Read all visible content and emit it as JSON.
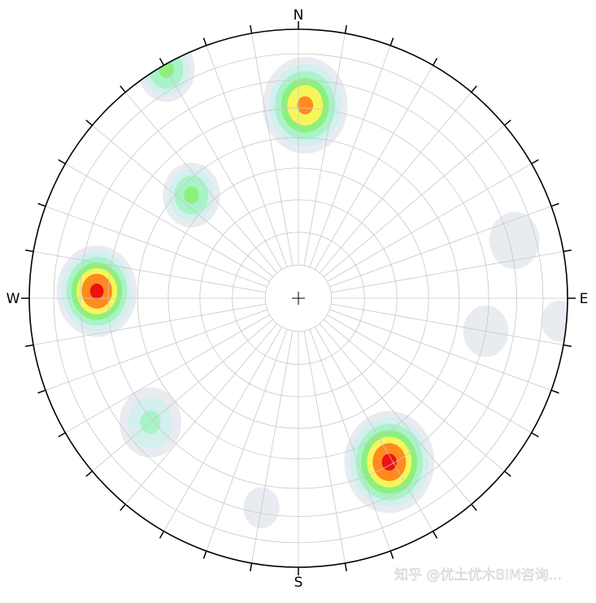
{
  "chart_data": {
    "type": "stereonet",
    "directions": [
      {
        "label": "N",
        "azimuth": 0
      },
      {
        "label": "E",
        "azimuth": 90
      },
      {
        "label": "S",
        "azimuth": 180
      },
      {
        "label": "W",
        "azimuth": 270
      }
    ],
    "grid": true,
    "grid_interval_deg": 10,
    "level_colors": [
      "#e8ecf1",
      "#d3efee",
      "#a8f3c8",
      "#8cf07e",
      "#f6f65a",
      "#ff8a1e",
      "#ee1111"
    ],
    "clusters": [
      {
        "trend": 2,
        "plunge": 29,
        "peak_level": 6,
        "spread": 16
      },
      {
        "trend": 272,
        "plunge": 26,
        "peak_level": 7,
        "spread": 15
      },
      {
        "trend": 151,
        "plunge": 31,
        "peak_level": 7,
        "spread": 17
      },
      {
        "trend": 314,
        "plunge": 44,
        "peak_level": 4,
        "spread": 10
      },
      {
        "trend": 330,
        "plunge": 2,
        "peak_level": 4,
        "spread": 10
      },
      {
        "trend": 230,
        "plunge": 29,
        "peak_level": 3,
        "spread": 11
      },
      {
        "trend": 75,
        "plunge": 18,
        "peak_level": 1,
        "spread": 10
      },
      {
        "trend": 100,
        "plunge": 30,
        "peak_level": 1,
        "spread": 9
      },
      {
        "trend": 95,
        "plunge": 3,
        "peak_level": 1,
        "spread": 7
      },
      {
        "trend": 190,
        "plunge": 22,
        "peak_level": 1,
        "spread": 7
      }
    ],
    "watermark": "知乎 @优土优木BIM咨询..."
  }
}
